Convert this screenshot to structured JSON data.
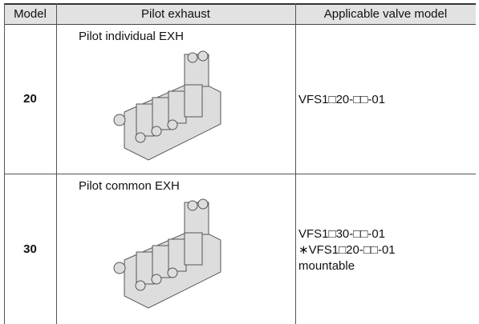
{
  "table": {
    "header": [
      "Model",
      "Pilot exhaust",
      "Applicable valve model"
    ],
    "rows": [
      {
        "model": "20",
        "exhaust": "Pilot individual EXH",
        "valve": [
          "VFS1□20-□□-01"
        ]
      },
      {
        "model": "30",
        "exhaust": "Pilot common EXH",
        "valve": [
          "VFS1□30-□□-01",
          "∗VFS1□20-□□-01",
          "mountable"
        ]
      }
    ]
  }
}
